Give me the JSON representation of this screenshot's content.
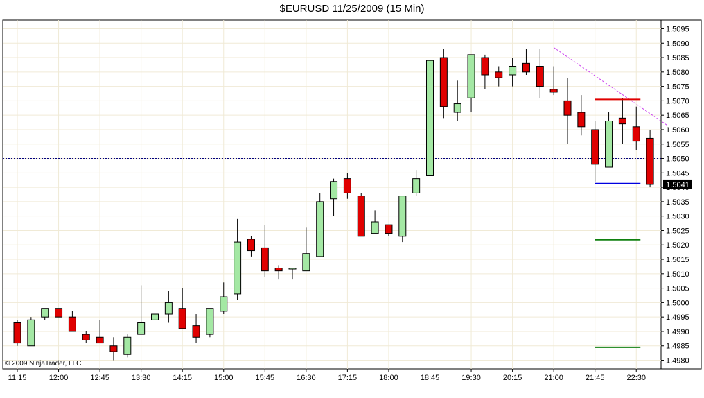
{
  "chart_data": {
    "type": "candlestick",
    "title": "$EURUSD  11/25/2009 (15 Min)",
    "copyright": "© 2009 NinjaTrader, LLC",
    "ylim": [
      1.4977,
      1.5098
    ],
    "y_ticks": [
      "1.5095",
      "1.5090",
      "1.5085",
      "1.5080",
      "1.5075",
      "1.5070",
      "1.5065",
      "1.5060",
      "1.5055",
      "1.5050",
      "1.5045",
      "1.5040",
      "1.5035",
      "1.5030",
      "1.5025",
      "1.5020",
      "1.5015",
      "1.5010",
      "1.5005",
      "1.5000",
      "1.4995",
      "1.4990",
      "1.4985",
      "1.4980"
    ],
    "x_ticks": [
      {
        "bar": 0,
        "label": "11:15"
      },
      {
        "bar": 3,
        "label": "12:00"
      },
      {
        "bar": 6,
        "label": "12:45"
      },
      {
        "bar": 9,
        "label": "13:30"
      },
      {
        "bar": 12,
        "label": "14:15"
      },
      {
        "bar": 15,
        "label": "15:00"
      },
      {
        "bar": 18,
        "label": "15:45"
      },
      {
        "bar": 21,
        "label": "16:30"
      },
      {
        "bar": 24,
        "label": "17:15"
      },
      {
        "bar": 27,
        "label": "18:00"
      },
      {
        "bar": 30,
        "label": "18:45"
      },
      {
        "bar": 33,
        "label": "19:30"
      },
      {
        "bar": 36,
        "label": "20:15"
      },
      {
        "bar": 39,
        "label": "21:00"
      },
      {
        "bar": 42,
        "label": "21:45"
      },
      {
        "bar": 45,
        "label": "22:30"
      }
    ],
    "candles": [
      {
        "o": 1.4993,
        "h": 1.4994,
        "l": 1.4985,
        "c": 1.4986
      },
      {
        "o": 1.4985,
        "h": 1.4995,
        "l": 1.4985,
        "c": 1.4994
      },
      {
        "o": 1.4995,
        "h": 1.4998,
        "l": 1.4994,
        "c": 1.4998
      },
      {
        "o": 1.4998,
        "h": 1.4998,
        "l": 1.4995,
        "c": 1.4995
      },
      {
        "o": 1.4995,
        "h": 1.4997,
        "l": 1.499,
        "c": 1.499
      },
      {
        "o": 1.4989,
        "h": 1.499,
        "l": 1.4986,
        "c": 1.4987
      },
      {
        "o": 1.4988,
        "h": 1.4994,
        "l": 1.4986,
        "c": 1.4986
      },
      {
        "o": 1.4985,
        "h": 1.4988,
        "l": 1.498,
        "c": 1.4983
      },
      {
        "o": 1.4982,
        "h": 1.4989,
        "l": 1.4981,
        "c": 1.4988
      },
      {
        "o": 1.4989,
        "h": 1.5006,
        "l": 1.4989,
        "c": 1.4993
      },
      {
        "o": 1.4994,
        "h": 1.5003,
        "l": 1.4988,
        "c": 1.4996
      },
      {
        "o": 1.4996,
        "h": 1.5004,
        "l": 1.4993,
        "c": 1.5
      },
      {
        "o": 1.4998,
        "h": 1.5005,
        "l": 1.4991,
        "c": 1.4991
      },
      {
        "o": 1.4992,
        "h": 1.4996,
        "l": 1.4986,
        "c": 1.4988
      },
      {
        "o": 1.4989,
        "h": 1.4998,
        "l": 1.4988,
        "c": 1.4998
      },
      {
        "o": 1.4997,
        "h": 1.5007,
        "l": 1.4996,
        "c": 1.5002
      },
      {
        "o": 1.5003,
        "h": 1.5029,
        "l": 1.5001,
        "c": 1.5021
      },
      {
        "o": 1.5022,
        "h": 1.5023,
        "l": 1.5016,
        "c": 1.5018
      },
      {
        "o": 1.5019,
        "h": 1.5027,
        "l": 1.5009,
        "c": 1.5011
      },
      {
        "o": 1.5012,
        "h": 1.5013,
        "l": 1.5008,
        "c": 1.5011
      },
      {
        "o": 1.5012,
        "h": 1.5012,
        "l": 1.5008,
        "c": 1.5012
      },
      {
        "o": 1.5011,
        "h": 1.5026,
        "l": 1.5011,
        "c": 1.5017
      },
      {
        "o": 1.5016,
        "h": 1.5038,
        "l": 1.5016,
        "c": 1.5035
      },
      {
        "o": 1.5036,
        "h": 1.5043,
        "l": 1.503,
        "c": 1.5042
      },
      {
        "o": 1.5043,
        "h": 1.5045,
        "l": 1.5036,
        "c": 1.5038
      },
      {
        "o": 1.5037,
        "h": 1.5038,
        "l": 1.5023,
        "c": 1.5023
      },
      {
        "o": 1.5024,
        "h": 1.5032,
        "l": 1.5024,
        "c": 1.5028
      },
      {
        "o": 1.5027,
        "h": 1.5027,
        "l": 1.5023,
        "c": 1.5024
      },
      {
        "o": 1.5023,
        "h": 1.5037,
        "l": 1.5021,
        "c": 1.5037
      },
      {
        "o": 1.5038,
        "h": 1.5046,
        "l": 1.5037,
        "c": 1.5043
      },
      {
        "o": 1.5044,
        "h": 1.5094,
        "l": 1.5044,
        "c": 1.5084
      },
      {
        "o": 1.5085,
        "h": 1.5088,
        "l": 1.5064,
        "c": 1.5068
      },
      {
        "o": 1.5066,
        "h": 1.5077,
        "l": 1.5063,
        "c": 1.5069
      },
      {
        "o": 1.5071,
        "h": 1.5086,
        "l": 1.5066,
        "c": 1.5086
      },
      {
        "o": 1.5085,
        "h": 1.5086,
        "l": 1.5074,
        "c": 1.5079
      },
      {
        "o": 1.508,
        "h": 1.5082,
        "l": 1.5075,
        "c": 1.5078
      },
      {
        "o": 1.5079,
        "h": 1.5085,
        "l": 1.5075,
        "c": 1.5082
      },
      {
        "o": 1.5083,
        "h": 1.5088,
        "l": 1.5079,
        "c": 1.508
      },
      {
        "o": 1.5082,
        "h": 1.5088,
        "l": 1.5071,
        "c": 1.5075
      },
      {
        "o": 1.5074,
        "h": 1.5082,
        "l": 1.5072,
        "c": 1.5073
      },
      {
        "o": 1.507,
        "h": 1.5078,
        "l": 1.5055,
        "c": 1.5065
      },
      {
        "o": 1.5066,
        "h": 1.5072,
        "l": 1.5058,
        "c": 1.5061
      },
      {
        "o": 1.506,
        "h": 1.5063,
        "l": 1.5042,
        "c": 1.5048
      },
      {
        "o": 1.5047,
        "h": 1.5066,
        "l": 1.5047,
        "c": 1.5063
      },
      {
        "o": 1.5064,
        "h": 1.5071,
        "l": 1.5055,
        "c": 1.5062
      },
      {
        "o": 1.5061,
        "h": 1.5068,
        "l": 1.5053,
        "c": 1.5056
      },
      {
        "o": 1.5057,
        "h": 1.506,
        "l": 1.504,
        "c": 1.5041
      }
    ],
    "current_price": {
      "value": 1.5041,
      "label": "1.5041"
    },
    "annotations": {
      "dotted_hline": 1.505,
      "trendline": {
        "from": {
          "bar": 39,
          "price": 1.50885
        },
        "to": {
          "bar": 47,
          "price": 1.50615
        },
        "color": "#cc44ee"
      },
      "levels": [
        {
          "from_bar": 42,
          "to_bar": 45,
          "price": 1.50705,
          "color": "#e00000"
        },
        {
          "from_bar": 42,
          "to_bar": 45,
          "price": 1.50413,
          "color": "#0000e0"
        },
        {
          "from_bar": 42,
          "to_bar": 45,
          "price": 1.50218,
          "color": "#108010"
        },
        {
          "from_bar": 42,
          "to_bar": 45,
          "price": 1.49845,
          "color": "#108010"
        }
      ]
    },
    "colors": {
      "up": "#a4e8a4",
      "down": "#e00000",
      "outline": "#000000",
      "grid": "#f0ead6",
      "dotted_line": "#000080"
    },
    "grid": true
  }
}
